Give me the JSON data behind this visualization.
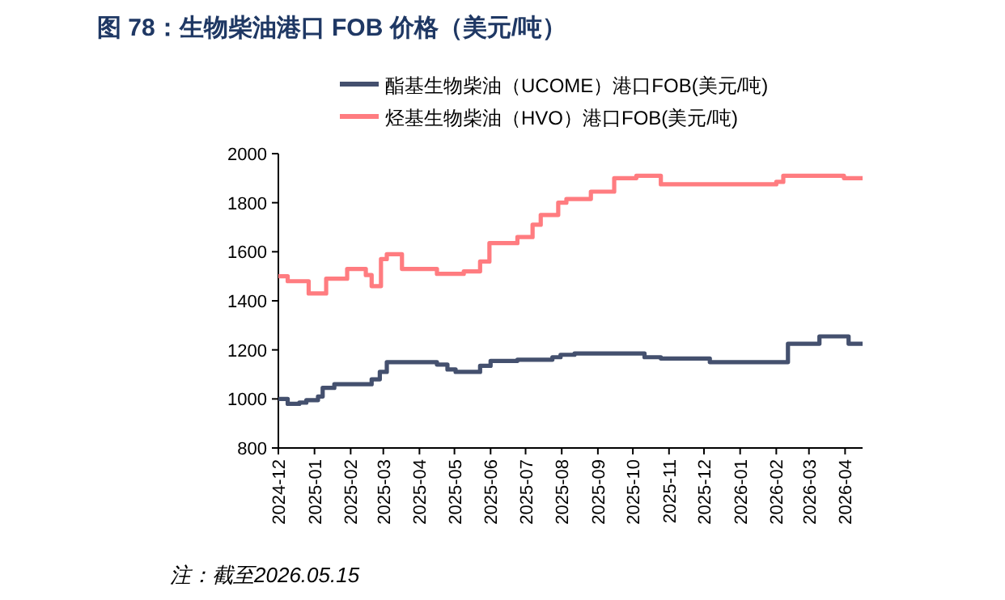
{
  "chart_data": {
    "type": "step",
    "title": "图 78：生物柴油港口 FOB 价格（美元/吨）",
    "legend": "top",
    "xlim": [
      "2024-12-01",
      "2026-04-16"
    ],
    "xticks": [
      "2024-12",
      "2025-01",
      "2025-02",
      "2025-03",
      "2025-04",
      "2025-05",
      "2025-06",
      "2025-07",
      "2025-08",
      "2025-09",
      "2025-10",
      "2025-11",
      "2025-12",
      "2026-01",
      "2026-02",
      "2026-03",
      "2026-04"
    ],
    "ylim": [
      800,
      2000
    ],
    "yticks": [
      800,
      1000,
      1200,
      1400,
      1600,
      1800,
      2000
    ],
    "series": [
      {
        "name": "酯基生物柴油（UCOME）港口FOB(美元/吨)",
        "color": "#44506e",
        "x": [
          "2024-12-01",
          "2024-12-09",
          "2024-12-19",
          "2024-12-25",
          "2025-01-04",
          "2025-01-08",
          "2025-01-18",
          "2025-02-19",
          "2025-02-26",
          "2025-03-04",
          "2025-04-16",
          "2025-04-25",
          "2025-05-02",
          "2025-05-23",
          "2025-06-01",
          "2025-06-24",
          "2025-07-24",
          "2025-07-31",
          "2025-08-12",
          "2025-10-11",
          "2025-10-25",
          "2025-12-06",
          "2026-02-11",
          "2026-03-10",
          "2026-04-04",
          "2026-04-16"
        ],
        "values": [
          1000,
          980,
          985,
          995,
          1010,
          1045,
          1060,
          1080,
          1110,
          1150,
          1140,
          1120,
          1110,
          1135,
          1155,
          1160,
          1170,
          1180,
          1185,
          1170,
          1165,
          1150,
          1225,
          1255,
          1225,
          1225
        ]
      },
      {
        "name": "烃基生物柴油（HVO）港口FOB(美元/吨)",
        "color": "#ff7c80",
        "x": [
          "2024-12-01",
          "2024-12-09",
          "2024-12-27",
          "2025-01-11",
          "2025-01-29",
          "2025-02-14",
          "2025-02-19",
          "2025-02-27",
          "2025-03-04",
          "2025-03-17",
          "2025-04-16",
          "2025-05-09",
          "2025-05-23",
          "2025-05-31",
          "2025-06-24",
          "2025-07-07",
          "2025-07-14",
          "2025-07-29",
          "2025-08-05",
          "2025-08-26",
          "2025-09-15",
          "2025-10-04",
          "2025-10-25",
          "2026-02-01",
          "2026-02-07",
          "2026-03-31",
          "2026-04-16"
        ],
        "values": [
          1500,
          1480,
          1430,
          1490,
          1530,
          1505,
          1460,
          1570,
          1590,
          1530,
          1510,
          1520,
          1560,
          1635,
          1660,
          1710,
          1750,
          1800,
          1815,
          1845,
          1900,
          1910,
          1875,
          1885,
          1910,
          1900,
          1900
        ]
      }
    ],
    "annotations": [
      "注：截至2026.05.15"
    ]
  }
}
